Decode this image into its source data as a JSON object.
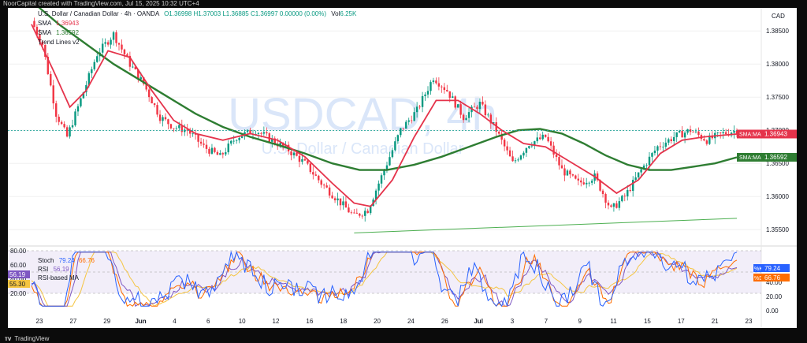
{
  "top_bar": {
    "text": "NoorCapital created with TradingView.com, Jul 15, 2025 10:32 UTC+4"
  },
  "bottom_bar": {
    "logo_text": "TradingView"
  },
  "symbol_line": {
    "name": "U.S. Dollar / Canadian Dollar · 4h · OANDA",
    "ohlc": "O1.36998  H1.37003  L1.36885  C1.36997  0.00000 (0.00%)",
    "vol": "Vol",
    "vol_value": "6.25K"
  },
  "currency_label": "CAD",
  "watermark": {
    "ticker": "USDCAD, 4h",
    "subtitle": "U.S. Dollar / Canadian Dollar"
  },
  "indicators": {
    "sma_fast": {
      "label": "SMA",
      "value": "1.36943"
    },
    "sma_slow": {
      "label": "SMA",
      "value": "1.36592"
    },
    "trend": {
      "label": "Trend Lines v2"
    }
  },
  "price_badges": {
    "sma_fast": {
      "label": "SMA:MA",
      "value": "1.36943",
      "color": "#e5334b"
    },
    "sma_slow": {
      "label": "SMA:MA",
      "value": "1.36592",
      "color": "#2e7d32"
    }
  },
  "osc_legend": {
    "stoch_label": "Stoch",
    "stoch_k": "79.24",
    "stoch_d": "66.76",
    "rsi_label": "RSI",
    "rsi_value": "56.19",
    "rsi_ma_label": "RSI-based MA",
    "rsi_ma_value": "55.30"
  },
  "osc_badges": {
    "k": {
      "label": "%K",
      "value": "79.24"
    },
    "d": {
      "label": "%D",
      "value": "66.76"
    },
    "rsi": {
      "value": "56.19"
    },
    "rsi_ma": {
      "value": "55.30"
    }
  },
  "chart_data": [
    {
      "type": "candlestick",
      "title": "U.S. Dollar / Canadian Dollar · 4h · OANDA",
      "ylim": [
        1.353,
        1.388
      ],
      "y_ticks": [
        "1.38500",
        "1.38000",
        "1.37500",
        "1.37000",
        "1.36500",
        "1.36000",
        "1.35500"
      ],
      "x_ticks": [
        "23",
        "27",
        "29",
        "Jun",
        "4",
        "6",
        "10",
        "12",
        "16",
        "18",
        "20",
        "24",
        "26",
        "Jul",
        "3",
        "7",
        "9",
        "11",
        "15",
        "17",
        "21",
        "23"
      ],
      "series": [
        {
          "name": "SMA",
          "color": "#e5334b",
          "last": 1.36943
        },
        {
          "name": "SMA",
          "color": "#2e7d32",
          "last": 1.36592
        }
      ],
      "price_path": [
        [
          0,
          1.3865
        ],
        [
          4,
          1.383
        ],
        [
          9,
          1.3725
        ],
        [
          13,
          1.369
        ],
        [
          17,
          1.3735
        ],
        [
          24,
          1.3815
        ],
        [
          30,
          1.3845
        ],
        [
          36,
          1.38
        ],
        [
          41,
          1.377
        ],
        [
          47,
          1.372
        ],
        [
          52,
          1.3705
        ],
        [
          57,
          1.37
        ],
        [
          63,
          1.3675
        ],
        [
          69,
          1.366
        ],
        [
          75,
          1.369
        ],
        [
          82,
          1.37
        ],
        [
          88,
          1.3685
        ],
        [
          94,
          1.367
        ],
        [
          100,
          1.365
        ],
        [
          106,
          1.362
        ],
        [
          112,
          1.3595
        ],
        [
          118,
          1.357
        ],
        [
          123,
          1.358
        ],
        [
          129,
          1.364
        ],
        [
          135,
          1.37
        ],
        [
          141,
          1.373
        ],
        [
          147,
          1.378
        ],
        [
          152,
          1.376
        ],
        [
          158,
          1.372
        ],
        [
          164,
          1.374
        ],
        [
          170,
          1.37
        ],
        [
          176,
          1.365
        ],
        [
          182,
          1.368
        ],
        [
          188,
          1.369
        ],
        [
          194,
          1.364
        ],
        [
          200,
          1.362
        ],
        [
          206,
          1.363
        ],
        [
          212,
          1.358
        ],
        [
          217,
          1.36
        ],
        [
          223,
          1.364
        ],
        [
          229,
          1.3675
        ],
        [
          235,
          1.369
        ],
        [
          241,
          1.37
        ],
        [
          247,
          1.3685
        ],
        [
          253,
          1.3695
        ],
        [
          258,
          1.37
        ]
      ],
      "sma_fast_path": [
        [
          0,
          1.386
        ],
        [
          8,
          1.379
        ],
        [
          14,
          1.3735
        ],
        [
          20,
          1.376
        ],
        [
          28,
          1.382
        ],
        [
          36,
          1.381
        ],
        [
          44,
          1.376
        ],
        [
          52,
          1.3715
        ],
        [
          60,
          1.3695
        ],
        [
          70,
          1.3685
        ],
        [
          80,
          1.3695
        ],
        [
          90,
          1.3685
        ],
        [
          100,
          1.366
        ],
        [
          110,
          1.362
        ],
        [
          118,
          1.359
        ],
        [
          124,
          1.3585
        ],
        [
          132,
          1.3625
        ],
        [
          140,
          1.369
        ],
        [
          148,
          1.3745
        ],
        [
          156,
          1.3745
        ],
        [
          164,
          1.3725
        ],
        [
          172,
          1.37
        ],
        [
          180,
          1.368
        ],
        [
          188,
          1.3675
        ],
        [
          196,
          1.3655
        ],
        [
          206,
          1.363
        ],
        [
          214,
          1.3605
        ],
        [
          222,
          1.3625
        ],
        [
          230,
          1.3665
        ],
        [
          238,
          1.3685
        ],
        [
          246,
          1.369
        ],
        [
          254,
          1.3693
        ],
        [
          258,
          1.36943
        ]
      ],
      "sma_slow_path": [
        [
          0,
          1.3895
        ],
        [
          10,
          1.386
        ],
        [
          20,
          1.383
        ],
        [
          30,
          1.38
        ],
        [
          40,
          1.3775
        ],
        [
          50,
          1.375
        ],
        [
          60,
          1.3725
        ],
        [
          70,
          1.3705
        ],
        [
          80,
          1.369
        ],
        [
          90,
          1.3678
        ],
        [
          100,
          1.3665
        ],
        [
          110,
          1.365
        ],
        [
          120,
          1.364
        ],
        [
          130,
          1.364
        ],
        [
          140,
          1.3648
        ],
        [
          150,
          1.366
        ],
        [
          160,
          1.3675
        ],
        [
          170,
          1.369
        ],
        [
          178,
          1.37
        ],
        [
          186,
          1.3702
        ],
        [
          194,
          1.3695
        ],
        [
          202,
          1.368
        ],
        [
          210,
          1.3662
        ],
        [
          218,
          1.3648
        ],
        [
          226,
          1.364
        ],
        [
          234,
          1.364
        ],
        [
          242,
          1.3645
        ],
        [
          250,
          1.365
        ],
        [
          258,
          1.36592
        ]
      ],
      "trend_line": [
        [
          118,
          1.3545
        ],
        [
          258,
          1.3567
        ]
      ],
      "last_price": 1.36997
    },
    {
      "type": "line",
      "title": "Stoch / RSI",
      "ylim": [
        0,
        80
      ],
      "y_ticks": [
        "80.00",
        "60.00",
        "40.00",
        "20.00"
      ],
      "right_ticks": [
        "40.00",
        "20.00",
        "0.00"
      ],
      "band": [
        20,
        80
      ],
      "series": [
        {
          "name": "%K",
          "color": "#2962ff",
          "last": 79.24
        },
        {
          "name": "%D",
          "color": "#ff6d00",
          "last": 66.76
        },
        {
          "name": "RSI",
          "color": "#7e57c2",
          "last": 56.19
        },
        {
          "name": "RSI-based MA",
          "color": "#f5c542",
          "last": 55.3
        }
      ]
    }
  ]
}
